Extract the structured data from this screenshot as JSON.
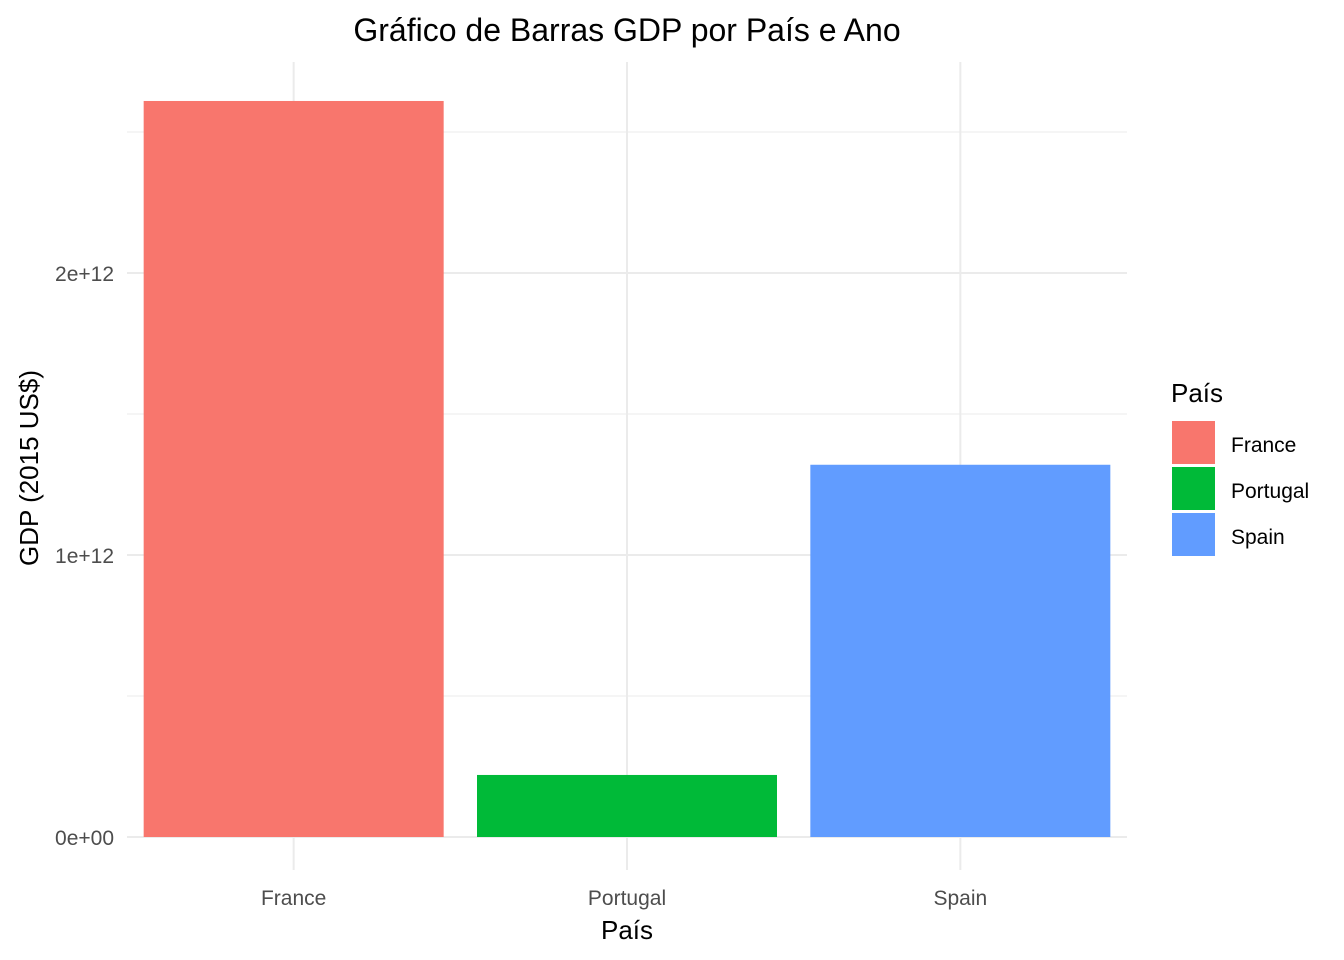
{
  "chart_data": {
    "type": "bar",
    "title": "Gráfico de Barras GDP por País e Ano",
    "xlabel": "País",
    "ylabel": "GDP (2015 US$)",
    "categories": [
      "France",
      "Portugal",
      "Spain"
    ],
    "values": [
      2610000000000,
      220000000000,
      1320000000000
    ],
    "colors": [
      "#F8766D",
      "#00BA38",
      "#619CFF"
    ],
    "ylim": [
      0,
      2700000000000
    ],
    "yticks": [
      {
        "value": 0,
        "label": "0e+00"
      },
      {
        "value": 1000000000000,
        "label": "1e+12"
      },
      {
        "value": 2000000000000,
        "label": "2e+12"
      }
    ],
    "yminor": [
      500000000000,
      1500000000000,
      2500000000000
    ],
    "grid": true,
    "legend": {
      "title": "País",
      "position": "right",
      "entries": [
        "France",
        "Portugal",
        "Spain"
      ]
    }
  }
}
